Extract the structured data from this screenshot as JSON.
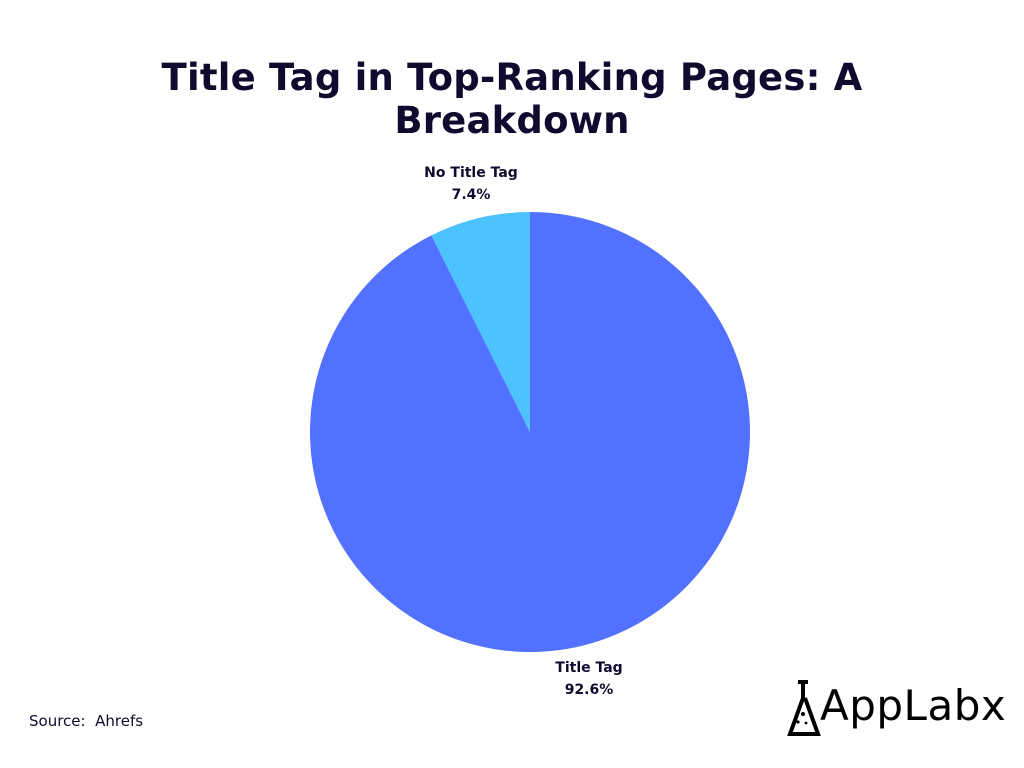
{
  "chart_data": {
    "type": "pie",
    "title": "Title Tag in Top-Ranking Pages: A Breakdown",
    "slices": [
      {
        "label": "Title Tag",
        "value": 92.6,
        "display": "92.6%",
        "color": "#5271ff"
      },
      {
        "label": "No Title Tag",
        "value": 7.4,
        "display": "7.4%",
        "color": "#4cc3ff"
      }
    ],
    "legend": "none"
  },
  "source": "Source:  Ahrefs",
  "logo": {
    "text": "AppLabx",
    "icon": "flask-icon"
  }
}
